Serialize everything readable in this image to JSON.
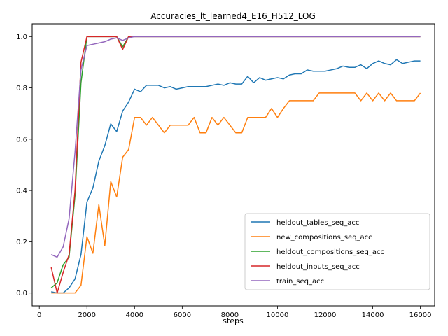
{
  "chart_data": {
    "type": "line",
    "title": "Accuracies_lt_learned4_E16_H512_LOG",
    "xlabel": "steps",
    "ylabel": "",
    "xlim": [
      -300,
      16600
    ],
    "ylim": [
      -0.05,
      1.05
    ],
    "xticks": [
      0,
      2000,
      4000,
      6000,
      8000,
      10000,
      12000,
      14000,
      16000
    ],
    "yticks": [
      0.0,
      0.2,
      0.4,
      0.6,
      0.8,
      1.0
    ],
    "xtick_labels": [
      "0",
      "2000",
      "4000",
      "6000",
      "8000",
      "10000",
      "12000",
      "14000",
      "16000"
    ],
    "ytick_labels": [
      "0.0",
      "0.2",
      "0.4",
      "0.6",
      "0.8",
      "1.0"
    ],
    "grid": false,
    "legend_position": "lower-right",
    "series": [
      {
        "name": "heldout_tables_seq_acc",
        "color": "#1f77b4",
        "x": [
          500,
          750,
          1000,
          1250,
          1500,
          1750,
          2000,
          2250,
          2500,
          2750,
          3000,
          3250,
          3500,
          3750,
          4000,
          4250,
          4500,
          4750,
          5000,
          5250,
          5500,
          5750,
          6000,
          6250,
          6500,
          6750,
          7000,
          7250,
          7500,
          7750,
          8000,
          8250,
          8500,
          8750,
          9000,
          9250,
          9500,
          9750,
          10000,
          10250,
          10500,
          10750,
          11000,
          11250,
          11500,
          11750,
          12000,
          12250,
          12500,
          12750,
          13000,
          13250,
          13500,
          13750,
          14000,
          14250,
          14500,
          14750,
          15000,
          15250,
          15500,
          15750,
          16000
        ],
        "y": [
          0.005,
          0.0,
          0.0,
          0.02,
          0.055,
          0.15,
          0.355,
          0.41,
          0.515,
          0.575,
          0.66,
          0.63,
          0.71,
          0.745,
          0.795,
          0.785,
          0.81,
          0.81,
          0.81,
          0.8,
          0.805,
          0.795,
          0.8,
          0.805,
          0.805,
          0.805,
          0.805,
          0.81,
          0.815,
          0.81,
          0.82,
          0.815,
          0.815,
          0.845,
          0.82,
          0.84,
          0.83,
          0.835,
          0.84,
          0.835,
          0.85,
          0.855,
          0.855,
          0.87,
          0.865,
          0.865,
          0.865,
          0.87,
          0.875,
          0.885,
          0.88,
          0.88,
          0.89,
          0.875,
          0.895,
          0.905,
          0.895,
          0.89,
          0.91,
          0.895,
          0.9,
          0.905,
          0.905
        ]
      },
      {
        "name": "new_compositions_seq_acc",
        "color": "#ff7f0e",
        "x": [
          500,
          750,
          1000,
          1250,
          1500,
          1750,
          2000,
          2250,
          2500,
          2750,
          3000,
          3250,
          3500,
          3750,
          4000,
          4250,
          4500,
          4750,
          5000,
          5250,
          5500,
          5750,
          6000,
          6250,
          6500,
          6750,
          7000,
          7250,
          7500,
          7750,
          8000,
          8250,
          8500,
          8750,
          9000,
          9250,
          9500,
          9750,
          10000,
          10250,
          10500,
          10750,
          11000,
          11250,
          11500,
          11750,
          12000,
          12250,
          12500,
          12750,
          13000,
          13250,
          13500,
          13750,
          14000,
          14250,
          14500,
          14750,
          15000,
          15250,
          15500,
          15750,
          16000
        ],
        "y": [
          0.0,
          0.0,
          0.0,
          0.0,
          0.0,
          0.03,
          0.22,
          0.155,
          0.345,
          0.185,
          0.435,
          0.375,
          0.53,
          0.56,
          0.685,
          0.685,
          0.655,
          0.685,
          0.655,
          0.625,
          0.655,
          0.655,
          0.655,
          0.655,
          0.685,
          0.625,
          0.625,
          0.685,
          0.655,
          0.685,
          0.655,
          0.625,
          0.625,
          0.685,
          0.685,
          0.685,
          0.685,
          0.72,
          0.685,
          0.72,
          0.75,
          0.75,
          0.75,
          0.75,
          0.75,
          0.78,
          0.78,
          0.78,
          0.78,
          0.78,
          0.78,
          0.78,
          0.75,
          0.78,
          0.75,
          0.78,
          0.75,
          0.78,
          0.75,
          0.75,
          0.75,
          0.75,
          0.78
        ]
      },
      {
        "name": "heldout_compositions_seq_acc",
        "color": "#2ca02c",
        "x": [
          500,
          750,
          1000,
          1250,
          1500,
          1750,
          2000,
          2250,
          2500,
          2750,
          3000,
          3250,
          3500,
          3750,
          4000,
          5000,
          6000,
          7000,
          8000,
          9000,
          10000,
          11000,
          12000,
          13000,
          14000,
          15000,
          16000
        ],
        "y": [
          0.02,
          0.04,
          0.11,
          0.14,
          0.38,
          0.82,
          1.0,
          1.0,
          1.0,
          1.0,
          1.0,
          1.0,
          0.96,
          1.0,
          1.0,
          1.0,
          1.0,
          1.0,
          1.0,
          1.0,
          1.0,
          1.0,
          1.0,
          1.0,
          1.0,
          1.0,
          1.0
        ]
      },
      {
        "name": "heldout_inputs_seq_acc",
        "color": "#d62728",
        "x": [
          500,
          750,
          1000,
          1250,
          1500,
          1750,
          2000,
          2250,
          2500,
          2750,
          3000,
          3250,
          3500,
          3750,
          4000,
          5000,
          6000,
          7000,
          8000,
          9000,
          10000,
          11000,
          12000,
          13000,
          14000,
          15000,
          16000
        ],
        "y": [
          0.1,
          0.0,
          0.08,
          0.15,
          0.4,
          0.9,
          1.0,
          1.0,
          1.0,
          1.0,
          1.0,
          1.0,
          0.95,
          1.0,
          1.0,
          1.0,
          1.0,
          1.0,
          1.0,
          1.0,
          1.0,
          1.0,
          1.0,
          1.0,
          1.0,
          1.0,
          1.0
        ]
      },
      {
        "name": "train_seq_acc",
        "color": "#9467bd",
        "x": [
          500,
          750,
          1000,
          1250,
          1500,
          1750,
          2000,
          2250,
          2500,
          2750,
          3000,
          3250,
          3500,
          3750,
          4000,
          5000,
          6000,
          7000,
          8000,
          9000,
          10000,
          11000,
          12000,
          13000,
          14000,
          15000,
          16000
        ],
        "y": [
          0.15,
          0.14,
          0.18,
          0.29,
          0.55,
          0.87,
          0.965,
          0.97,
          0.975,
          0.98,
          0.99,
          0.995,
          0.985,
          0.995,
          1.0,
          1.0,
          1.0,
          1.0,
          1.0,
          1.0,
          1.0,
          1.0,
          1.0,
          1.0,
          1.0,
          1.0,
          1.0
        ]
      }
    ]
  }
}
